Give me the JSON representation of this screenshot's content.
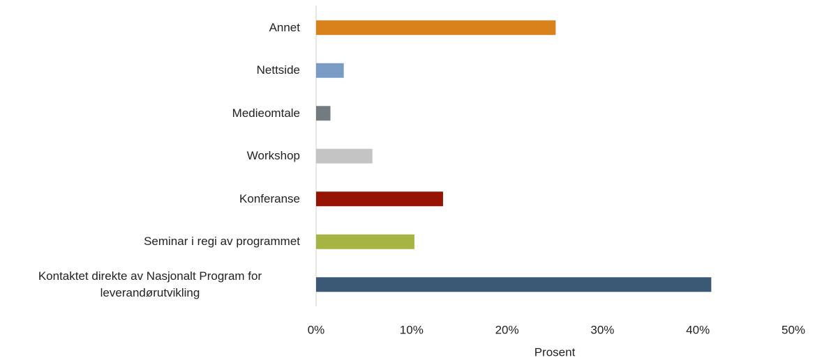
{
  "chart_data": {
    "type": "bar",
    "orientation": "horizontal",
    "categories": [
      "Annet",
      "Nettside",
      "Medieomtale",
      "Workshop",
      "Konferanse",
      "Seminar i regi av programmet",
      "Kontaktet direkte av Nasjonalt Program for leverandørutvikling"
    ],
    "values": [
      25.1,
      2.9,
      1.5,
      5.9,
      13.3,
      10.3,
      41.4
    ],
    "colors": [
      "#d9821c",
      "#7a9cc4",
      "#737b80",
      "#c4c4c4",
      "#961403",
      "#a5b443",
      "#3b5875"
    ],
    "xlabel": "Prosent",
    "xlim": [
      0,
      50
    ],
    "xticks": [
      {
        "value": 0,
        "label": "0%"
      },
      {
        "value": 10,
        "label": "10%"
      },
      {
        "value": 20,
        "label": "20%"
      },
      {
        "value": 30,
        "label": "30%"
      },
      {
        "value": 40,
        "label": "40%"
      },
      {
        "value": 50,
        "label": "50%"
      }
    ]
  }
}
